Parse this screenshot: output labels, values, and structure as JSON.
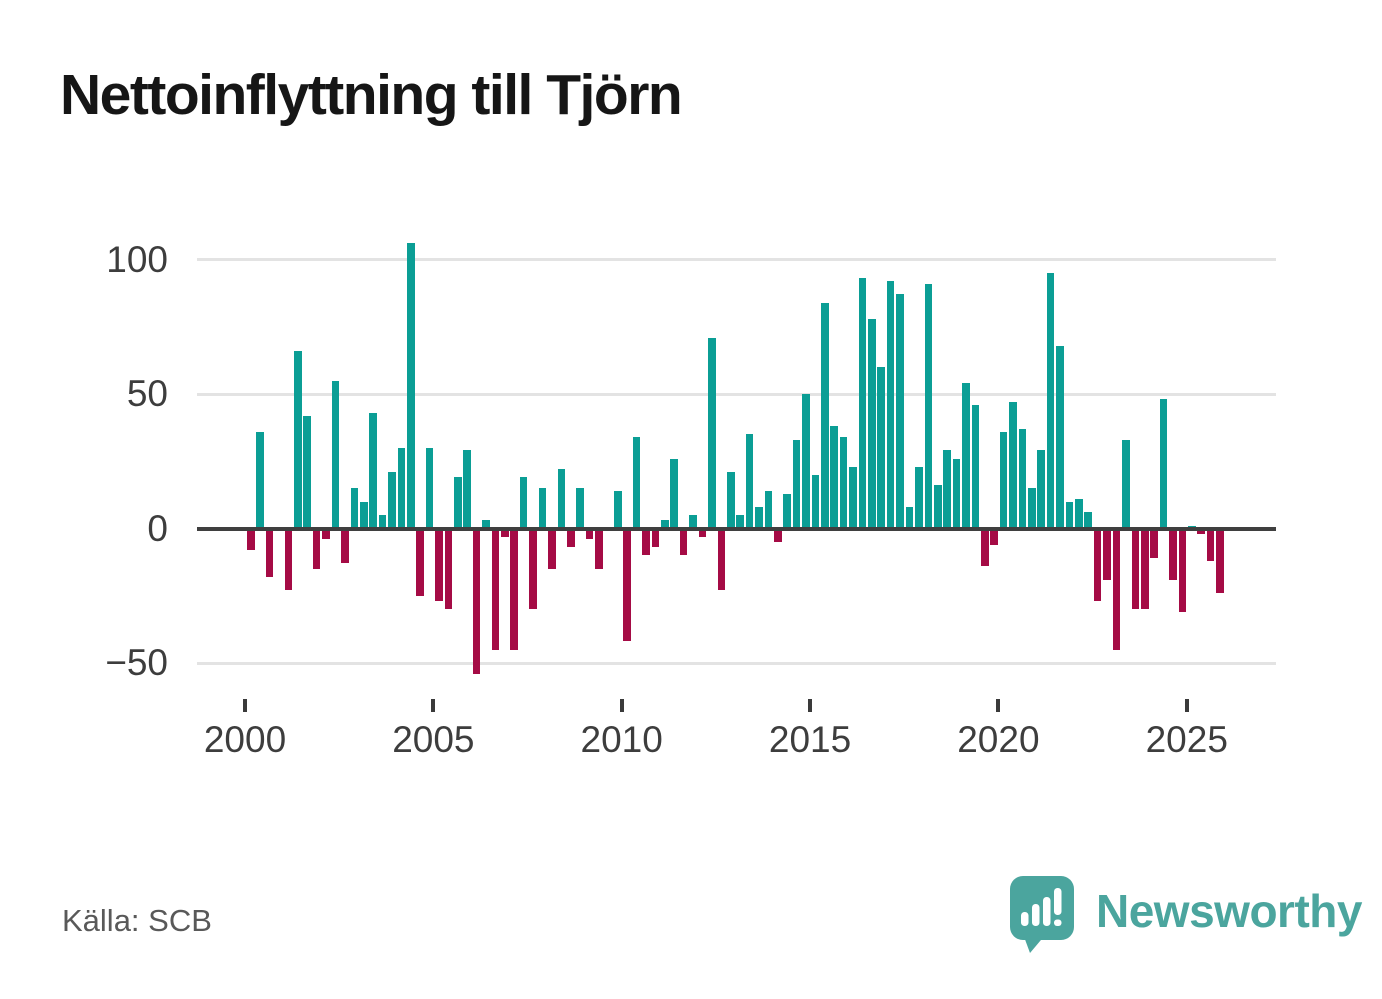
{
  "title": "Nettoinflyttning till Tjörn",
  "source": "Källa: SCB",
  "logo": {
    "text": "Newsworthy",
    "icon": "newsworthy-chart-bubble-icon"
  },
  "colors": {
    "positive_bar": "#0b9e95",
    "negative_bar": "#a50b45",
    "logo_teal": "#4ba59e",
    "gridline": "#e3e3e3",
    "zero_line": "#3f3f3f",
    "tick_label": "#3d3d3d",
    "title_text": "#161616",
    "source_text": "#595959"
  },
  "chart_data": {
    "type": "bar",
    "title": "Nettoinflyttning till Tjörn",
    "period": "quarterly",
    "start": "2000-Q1",
    "end": "2025-Q4",
    "x_tick_labels": [
      "2000",
      "2005",
      "2010",
      "2015",
      "2020",
      "2025"
    ],
    "y_tick_labels": [
      "100",
      "50",
      "0",
      "−50"
    ],
    "y_ticks": [
      100,
      50,
      0,
      -50
    ],
    "ylim": [
      -60,
      112
    ],
    "grid": "horizontal",
    "legend": "none",
    "source_label": "Källa: SCB",
    "values": [
      -8,
      36,
      -18,
      0,
      -23,
      66,
      42,
      -15,
      -4,
      55,
      -13,
      15,
      10,
      43,
      5,
      21,
      30,
      106,
      -25,
      30,
      -27,
      -30,
      19,
      29,
      -54,
      3,
      -45,
      -3,
      -45,
      19,
      -30,
      15,
      -15,
      22,
      -7,
      15,
      -4,
      -15,
      0,
      14,
      -42,
      34,
      -10,
      -7,
      3,
      26,
      -10,
      5,
      -3,
      71,
      -23,
      21,
      5,
      35,
      8,
      14,
      -5,
      13,
      33,
      50,
      20,
      84,
      38,
      34,
      23,
      93,
      78,
      60,
      92,
      87,
      8,
      23,
      91,
      16,
      29,
      26,
      54,
      46,
      -14,
      -6,
      36,
      47,
      37,
      15,
      29,
      95,
      68,
      10,
      11,
      6,
      -27,
      -19,
      -45,
      33,
      -30,
      -30,
      -11,
      48,
      -19,
      -31,
      1,
      -2,
      -12,
      -24
    ]
  }
}
